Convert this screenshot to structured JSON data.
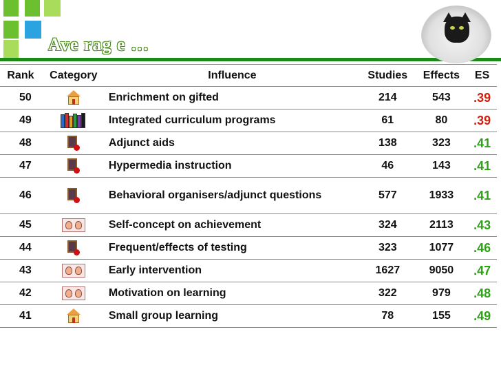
{
  "header": {
    "title": "Ave rag e …"
  },
  "table": {
    "columns": [
      "Rank",
      "Category",
      "Influence",
      "Studies",
      "Effects",
      "ES"
    ],
    "rows": [
      {
        "rank": "50",
        "category": "school-icon",
        "influence": "Enrichment on gifted",
        "studies": "214",
        "effects": "543",
        "es": ".39",
        "es_color": "#d0200f"
      },
      {
        "rank": "49",
        "category": "books-icon",
        "influence": "Integrated curriculum programs",
        "studies": "61",
        "effects": "80",
        "es": ".39",
        "es_color": "#d0200f"
      },
      {
        "rank": "48",
        "category": "chalkboard-apple-icon",
        "influence": "Adjunct aids",
        "studies": "138",
        "effects": "323",
        "es": ".41",
        "es_color": "#2ea217"
      },
      {
        "rank": "47",
        "category": "chalkboard-apple-icon",
        "influence": "Hypermedia instruction",
        "studies": "46",
        "effects": "143",
        "es": ".41",
        "es_color": "#2ea217"
      },
      {
        "rank": "46",
        "category": "chalkboard-apple-icon",
        "influence": "Behavioral organisers/adjunct questions",
        "studies": "577",
        "effects": "1933",
        "es": ".41",
        "es_color": "#2ea217"
      },
      {
        "rank": "45",
        "category": "students-icon",
        "influence": "Self-concept on achievement",
        "studies": "324",
        "effects": "2113",
        "es": ".43",
        "es_color": "#2ea217"
      },
      {
        "rank": "44",
        "category": "chalkboard-apple-icon",
        "influence": "Frequent/effects of testing",
        "studies": "323",
        "effects": "1077",
        "es": ".46",
        "es_color": "#2ea217"
      },
      {
        "rank": "43",
        "category": "students-icon",
        "influence": "Early intervention",
        "studies": "1627",
        "effects": "9050",
        "es": ".47",
        "es_color": "#2ea217"
      },
      {
        "rank": "42",
        "category": "students-icon",
        "influence": "Motivation on learning",
        "studies": "322",
        "effects": "979",
        "es": ".48",
        "es_color": "#2ea217"
      },
      {
        "rank": "41",
        "category": "school-icon",
        "influence": "Small group learning",
        "studies": "78",
        "effects": "155",
        "es": ".49",
        "es_color": "#2ea217"
      }
    ]
  }
}
